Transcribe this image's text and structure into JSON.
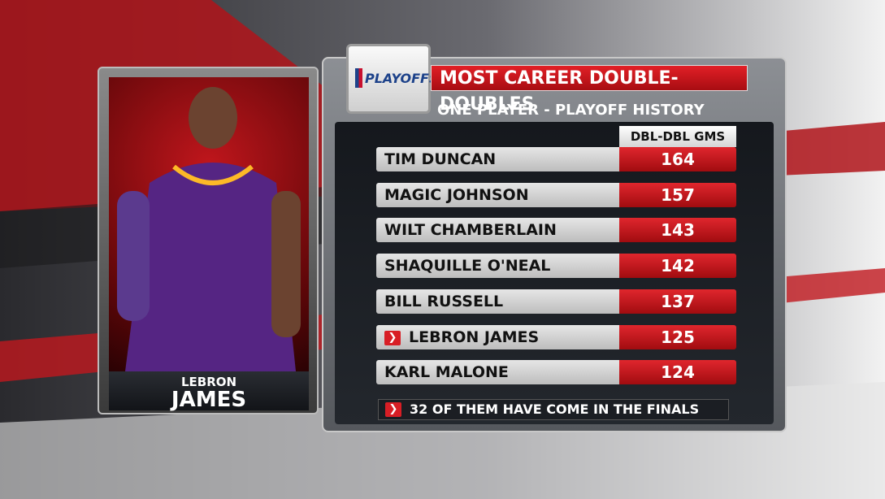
{
  "header": {
    "logo": "PLAYOFFS",
    "title": "MOST CAREER DOUBLE-DOUBLES",
    "subtitle": "ONE PLAYER - PLAYOFF HISTORY"
  },
  "player": {
    "first_name": "LEBRON",
    "last_name": "JAMES"
  },
  "table": {
    "column_header": "DBL-DBL GMS",
    "rows": [
      [
        "TIM DUNCAN",
        "164"
      ],
      [
        "MAGIC JOHNSON",
        "157"
      ],
      [
        "WILT CHAMBERLAIN",
        "143"
      ],
      [
        "SHAQUILLE O'NEAL",
        "142"
      ],
      [
        "BILL RUSSELL",
        "137"
      ],
      [
        "LEBRON JAMES",
        "125"
      ],
      [
        "KARL MALONE",
        "124"
      ]
    ],
    "highlight_row": 5
  },
  "footnote": "32 OF THEM HAVE COME IN THE FINALS"
}
